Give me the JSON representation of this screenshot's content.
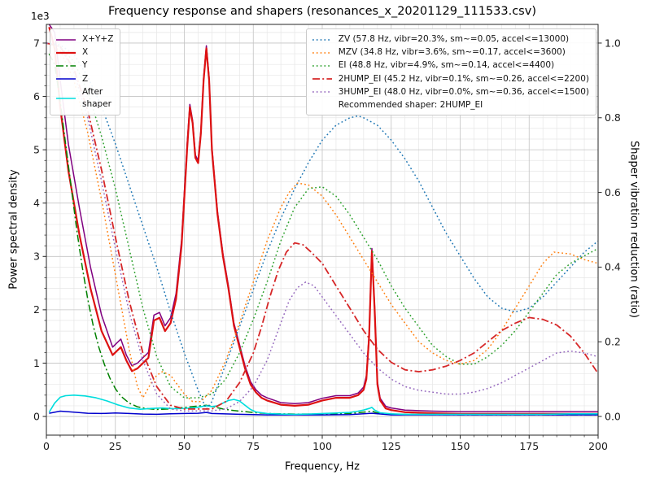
{
  "chart_data": {
    "type": "line",
    "title": "Frequency response and shapers (resonances_x_20201129_111533.csv)",
    "xlabel": "Frequency, Hz",
    "ylabel_left": "Power spectral density",
    "ylabel_right": "Shaper vibration reduction (ratio)",
    "left_axis_multiplier": "1e3",
    "grid": {
      "major_color": "#c3c3c3",
      "minor_color": "#e6e6e6",
      "on": true
    },
    "x_axis": {
      "min": 0,
      "max": 200,
      "major_step": 25,
      "minor_step": 5,
      "major_ticks": [
        0,
        25,
        50,
        75,
        100,
        125,
        150,
        175,
        200
      ],
      "tick_labels": [
        "0",
        "25",
        "50",
        "75",
        "100",
        "125",
        "150",
        "175",
        "200"
      ]
    },
    "left_axis": {
      "min": -350,
      "max": 7350,
      "scale": 1000,
      "major_step": 1000,
      "minor_step": 200,
      "major_ticks": [
        0,
        1000,
        2000,
        3000,
        4000,
        5000,
        6000,
        7000
      ],
      "tick_labels": [
        "0",
        "1",
        "2",
        "3",
        "4",
        "5",
        "6",
        "7"
      ]
    },
    "right_axis": {
      "min": -0.05,
      "max": 1.05,
      "major_ticks": [
        0,
        0.2,
        0.4,
        0.6,
        0.8,
        1.0
      ],
      "tick_labels": [
        "0.0",
        "0.2",
        "0.4",
        "0.6",
        "0.8",
        "1.0"
      ]
    },
    "psd_series": [
      {
        "name": "x-plus-y-plus-z",
        "label": "X+Y+Z",
        "color": "#800080",
        "style": "solid",
        "width": 1.5,
        "axis": "left",
        "x": [
          1,
          3,
          5,
          8,
          12,
          16,
          20,
          24,
          27,
          29,
          31,
          33,
          35,
          37,
          39,
          41,
          43,
          45,
          47,
          49,
          51,
          52,
          53,
          54,
          55,
          56,
          57,
          58,
          59,
          60,
          62,
          64,
          66,
          68,
          70,
          72,
          74,
          76,
          78,
          80,
          85,
          90,
          95,
          100,
          105,
          110,
          113,
          115,
          116,
          117,
          118,
          119,
          120,
          121,
          123,
          125,
          130,
          140,
          150,
          160,
          170,
          180,
          190,
          200
        ],
        "y": [
          7350,
          7200,
          6300,
          5100,
          3900,
          2800,
          1900,
          1300,
          1450,
          1150,
          950,
          1000,
          1100,
          1200,
          1900,
          1950,
          1700,
          1850,
          2300,
          3300,
          5100,
          5850,
          5550,
          4900,
          4800,
          5350,
          6350,
          6950,
          6350,
          5050,
          3850,
          3050,
          2450,
          1750,
          1350,
          950,
          650,
          500,
          400,
          350,
          260,
          240,
          260,
          340,
          390,
          390,
          440,
          550,
          760,
          1550,
          3150,
          2050,
          650,
          340,
          190,
          160,
          120,
          100,
          90,
          90,
          90,
          90,
          90,
          90
        ]
      },
      {
        "name": "x",
        "label": "X",
        "color": "#dd1111",
        "style": "solid",
        "width": 2.2,
        "axis": "left",
        "x": [
          1,
          3,
          5,
          8,
          12,
          16,
          20,
          24,
          27,
          29,
          31,
          33,
          35,
          37,
          39,
          41,
          43,
          45,
          47,
          49,
          51,
          52,
          53,
          54,
          55,
          56,
          57,
          58,
          59,
          60,
          62,
          64,
          66,
          68,
          70,
          72,
          74,
          76,
          78,
          80,
          85,
          90,
          95,
          100,
          105,
          110,
          113,
          115,
          116,
          117,
          118,
          119,
          120,
          121,
          123,
          125,
          130,
          140,
          150,
          160,
          170,
          180,
          190,
          200
        ],
        "y": [
          7300,
          6900,
          5800,
          4600,
          3400,
          2400,
          1600,
          1150,
          1300,
          1050,
          850,
          900,
          1000,
          1100,
          1800,
          1850,
          1600,
          1750,
          2200,
          3200,
          5000,
          5800,
          5500,
          4850,
          4750,
          5300,
          6300,
          6900,
          6300,
          5000,
          3800,
          3000,
          2400,
          1700,
          1300,
          900,
          600,
          450,
          350,
          300,
          220,
          200,
          220,
          300,
          350,
          350,
          400,
          500,
          700,
          1500,
          3100,
          2000,
          600,
          300,
          150,
          120,
          80,
          60,
          50,
          50,
          50,
          50,
          50,
          50
        ]
      },
      {
        "name": "y",
        "label": "Y",
        "color": "#008000",
        "style": "dashdot",
        "width": 1.5,
        "axis": "left",
        "x": [
          1,
          3,
          5,
          7,
          9,
          11,
          13,
          15,
          17,
          19,
          21,
          23,
          25,
          27,
          30,
          33,
          36,
          40,
          44,
          48,
          52,
          56,
          58,
          60,
          64,
          68,
          72,
          76,
          80,
          90,
          100,
          110,
          115,
          118,
          120,
          125,
          135,
          150,
          170,
          190,
          200
        ],
        "y": [
          6800,
          6600,
          5900,
          5100,
          4300,
          3500,
          2800,
          2200,
          1700,
          1300,
          980,
          720,
          520,
          380,
          250,
          180,
          150,
          130,
          140,
          160,
          180,
          200,
          210,
          190,
          140,
          110,
          90,
          70,
          55,
          45,
          45,
          55,
          80,
          100,
          65,
          45,
          35,
          30,
          30,
          30,
          30
        ]
      },
      {
        "name": "z",
        "label": "Z",
        "color": "#0000cd",
        "style": "solid",
        "width": 1.5,
        "axis": "left",
        "x": [
          1,
          5,
          10,
          15,
          20,
          25,
          30,
          35,
          40,
          45,
          50,
          55,
          58,
          60,
          70,
          80,
          90,
          100,
          110,
          118,
          125,
          150,
          175,
          200
        ],
        "y": [
          60,
          100,
          80,
          60,
          55,
          65,
          55,
          45,
          40,
          50,
          55,
          60,
          75,
          55,
          40,
          30,
          30,
          30,
          35,
          60,
          30,
          30,
          30,
          30
        ]
      },
      {
        "name": "after-shaper",
        "label": "After\nshaper",
        "color": "#00dddd",
        "style": "solid",
        "width": 1.6,
        "axis": "left",
        "x": [
          1,
          3,
          5,
          7,
          10,
          14,
          18,
          22,
          26,
          30,
          34,
          38,
          42,
          46,
          50,
          54,
          58,
          60,
          62,
          64,
          66,
          68,
          70,
          72,
          74,
          76,
          80,
          85,
          90,
          95,
          100,
          105,
          110,
          113,
          115,
          117,
          118,
          119,
          121,
          125,
          130,
          140,
          150,
          160,
          170,
          180,
          190,
          200
        ],
        "y": [
          80,
          250,
          360,
          390,
          400,
          385,
          350,
          290,
          215,
          160,
          135,
          150,
          160,
          145,
          150,
          165,
          200,
          185,
          200,
          250,
          300,
          320,
          290,
          210,
          130,
          85,
          55,
          45,
          40,
          45,
          55,
          65,
          75,
          100,
          120,
          150,
          170,
          120,
          70,
          50,
          40,
          40,
          40,
          40,
          40,
          40,
          50,
          50
        ]
      }
    ],
    "shaper_series": [
      {
        "name": "zv",
        "label": "ZV (57.8 Hz, vibr=20.3%, sm~=0.05, accel<=13000)",
        "color": "#1f77b4",
        "style": "dotted",
        "width": 1.5,
        "axis": "right",
        "x": [
          0,
          5,
          10,
          15,
          20,
          25,
          30,
          35,
          40,
          45,
          50,
          55,
          58,
          60,
          65,
          70,
          75,
          80,
          85,
          90,
          95,
          100,
          105,
          110,
          113,
          115,
          120,
          125,
          130,
          135,
          140,
          145,
          150,
          155,
          160,
          165,
          170,
          175,
          180,
          185,
          190,
          195,
          200
        ],
        "y": [
          1.0,
          0.995,
          0.97,
          0.91,
          0.83,
          0.73,
          0.62,
          0.51,
          0.4,
          0.28,
          0.17,
          0.07,
          0.02,
          0.04,
          0.14,
          0.24,
          0.34,
          0.44,
          0.53,
          0.61,
          0.68,
          0.74,
          0.78,
          0.8,
          0.805,
          0.8,
          0.78,
          0.74,
          0.69,
          0.63,
          0.56,
          0.49,
          0.43,
          0.37,
          0.32,
          0.29,
          0.28,
          0.29,
          0.32,
          0.36,
          0.4,
          0.44,
          0.47
        ]
      },
      {
        "name": "mzv",
        "label": "MZV (34.8 Hz, vibr=3.6%, sm~=0.17, accel<=3600)",
        "color": "#ff7f0e",
        "style": "dotted",
        "width": 1.5,
        "axis": "right",
        "x": [
          0,
          5,
          10,
          15,
          20,
          25,
          30,
          33,
          35,
          38,
          40,
          42,
          45,
          48,
          50,
          53,
          56,
          60,
          65,
          70,
          75,
          80,
          85,
          88,
          91,
          95,
          100,
          105,
          110,
          115,
          120,
          125,
          130,
          135,
          140,
          145,
          150,
          155,
          160,
          165,
          170,
          175,
          180,
          184,
          190,
          195,
          200
        ],
        "y": [
          1.0,
          0.98,
          0.9,
          0.76,
          0.58,
          0.38,
          0.18,
          0.08,
          0.05,
          0.09,
          0.11,
          0.12,
          0.11,
          0.08,
          0.06,
          0.04,
          0.04,
          0.07,
          0.15,
          0.25,
          0.36,
          0.47,
          0.56,
          0.6,
          0.625,
          0.62,
          0.59,
          0.54,
          0.48,
          0.42,
          0.36,
          0.3,
          0.25,
          0.2,
          0.17,
          0.15,
          0.14,
          0.15,
          0.18,
          0.23,
          0.29,
          0.35,
          0.41,
          0.44,
          0.435,
          0.42,
          0.41
        ]
      },
      {
        "name": "ei",
        "label": "EI (48.8 Hz, vibr=4.9%, sm~=0.14, accel<=4400)",
        "color": "#2ca02c",
        "style": "dotted",
        "width": 1.5,
        "axis": "right",
        "x": [
          0,
          5,
          10,
          15,
          20,
          25,
          30,
          35,
          40,
          45,
          50,
          55,
          60,
          65,
          70,
          75,
          80,
          85,
          90,
          95,
          100,
          105,
          110,
          115,
          120,
          125,
          130,
          135,
          140,
          145,
          150,
          155,
          160,
          165,
          170,
          175,
          180,
          185,
          190,
          195,
          200
        ],
        "y": [
          1.0,
          0.99,
          0.95,
          0.87,
          0.75,
          0.61,
          0.45,
          0.29,
          0.16,
          0.08,
          0.05,
          0.05,
          0.06,
          0.1,
          0.17,
          0.26,
          0.36,
          0.47,
          0.56,
          0.61,
          0.615,
          0.59,
          0.54,
          0.48,
          0.42,
          0.35,
          0.29,
          0.24,
          0.19,
          0.16,
          0.14,
          0.14,
          0.16,
          0.19,
          0.23,
          0.28,
          0.33,
          0.38,
          0.41,
          0.43,
          0.45
        ]
      },
      {
        "name": "2hump-ei",
        "label": "2HUMP_EI (45.2 Hz, vibr=0.1%, sm~=0.26, accel<=2200)",
        "color": "#d62728",
        "style": "dashdot",
        "width": 1.8,
        "axis": "right",
        "x": [
          0,
          5,
          10,
          15,
          20,
          25,
          30,
          35,
          40,
          45,
          50,
          55,
          60,
          65,
          70,
          75,
          78,
          81,
          84,
          87,
          90,
          93,
          96,
          100,
          105,
          110,
          115,
          120,
          125,
          130,
          135,
          140,
          145,
          150,
          155,
          160,
          165,
          170,
          175,
          180,
          185,
          190,
          195,
          200
        ],
        "y": [
          1.0,
          0.99,
          0.93,
          0.82,
          0.66,
          0.48,
          0.31,
          0.17,
          0.08,
          0.03,
          0.02,
          0.02,
          0.02,
          0.04,
          0.09,
          0.17,
          0.24,
          0.32,
          0.39,
          0.44,
          0.465,
          0.46,
          0.44,
          0.41,
          0.35,
          0.29,
          0.23,
          0.18,
          0.145,
          0.125,
          0.12,
          0.125,
          0.135,
          0.15,
          0.17,
          0.2,
          0.23,
          0.25,
          0.265,
          0.26,
          0.245,
          0.215,
          0.17,
          0.115
        ]
      },
      {
        "name": "3hump-ei",
        "label": "3HUMP_EI (48.0 Hz, vibr=0.0%, sm~=0.36, accel<=1500)",
        "color": "#9467bd",
        "style": "dotted",
        "width": 1.5,
        "axis": "right",
        "x": [
          0,
          5,
          10,
          15,
          20,
          25,
          30,
          35,
          40,
          45,
          50,
          55,
          60,
          65,
          70,
          75,
          80,
          85,
          88,
          91,
          94,
          97,
          100,
          105,
          110,
          115,
          120,
          125,
          130,
          135,
          140,
          145,
          150,
          155,
          160,
          165,
          170,
          175,
          180,
          185,
          190,
          195,
          200
        ],
        "y": [
          1.0,
          0.99,
          0.92,
          0.8,
          0.63,
          0.45,
          0.28,
          0.15,
          0.06,
          0.02,
          0.015,
          0.015,
          0.015,
          0.02,
          0.04,
          0.08,
          0.15,
          0.25,
          0.31,
          0.345,
          0.36,
          0.35,
          0.32,
          0.27,
          0.22,
          0.17,
          0.13,
          0.1,
          0.08,
          0.07,
          0.065,
          0.06,
          0.06,
          0.065,
          0.075,
          0.09,
          0.11,
          0.13,
          0.15,
          0.17,
          0.175,
          0.17,
          0.16
        ]
      }
    ],
    "legend_shapers_note": "Recommended shaper: 2HUMP_EI"
  }
}
